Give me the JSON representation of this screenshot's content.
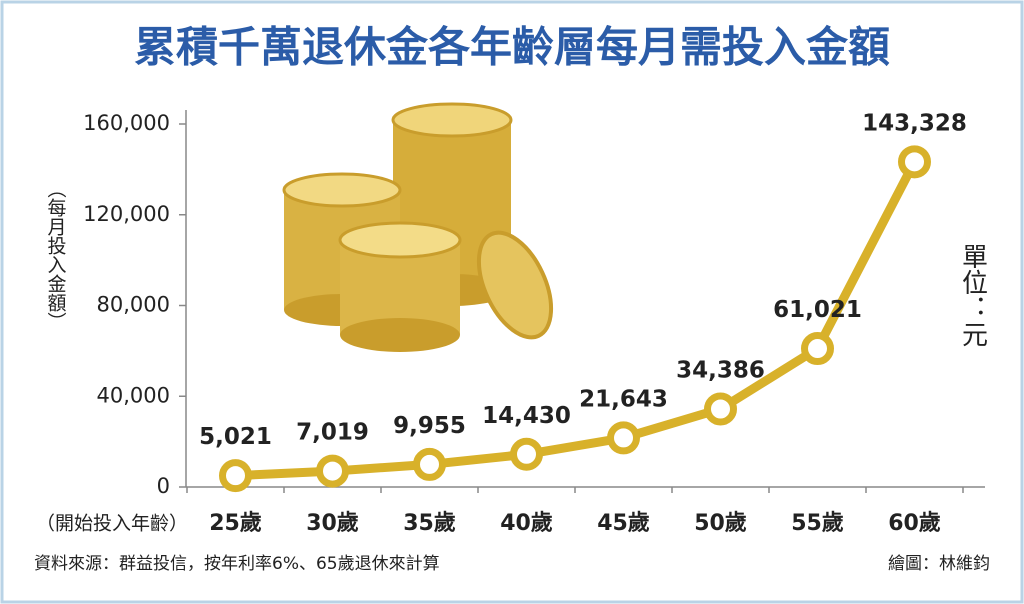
{
  "chart_data": {
    "type": "line",
    "title": "累積千萬退休金各年齡層每月需投入金額",
    "y_label": "（每月投入金額）",
    "x_label": "（開始投入年齡）",
    "unit_label": "單位：元",
    "source": "資料來源：群益投信，按年利率6%、65歲退休來計算",
    "credit": "繪圖：林維鈞",
    "categories": [
      "25歲",
      "30歲",
      "35歲",
      "40歲",
      "45歲",
      "50歲",
      "55歲",
      "60歲"
    ],
    "values": [
      5021,
      7019,
      9955,
      14430,
      21643,
      34386,
      61021,
      143328
    ],
    "value_labels": [
      "5,021",
      "7,019",
      "9,955",
      "14,430",
      "21,643",
      "34,386",
      "61,021",
      "143,328"
    ],
    "color": "#d8b12a",
    "ylim": [
      0,
      160000
    ],
    "yticks": [
      0,
      {
        "value": 40000,
        "label": "40,000"
      },
      {
        "value": 80000,
        "label": "80,000"
      },
      {
        "value": 120000,
        "label": "120,000"
      },
      {
        "value": 160000,
        "label": "160,000"
      }
    ]
  }
}
